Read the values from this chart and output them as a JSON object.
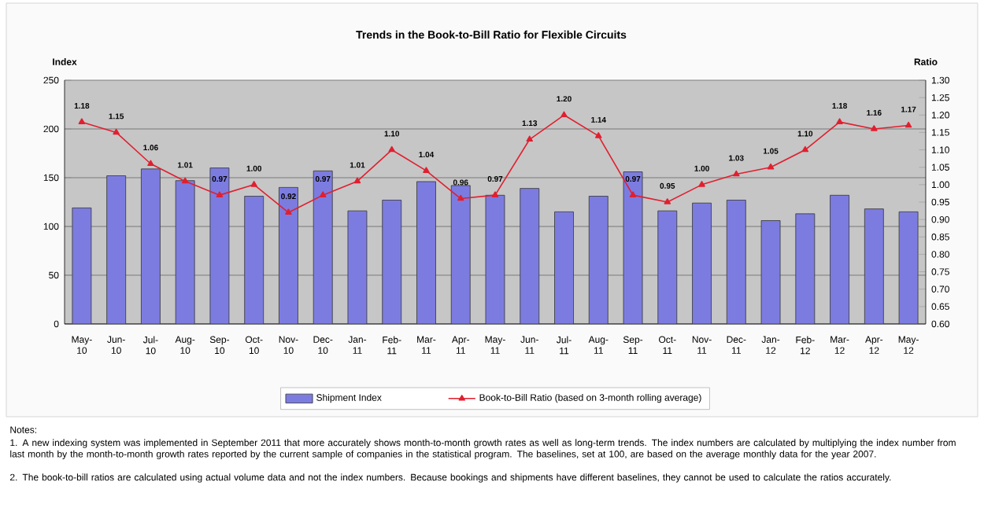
{
  "chart_data": {
    "type": "bar",
    "title": "Trends in the Book-to-Bill Ratio for Flexible Circuits",
    "ylabel": "Index",
    "y2label": "Ratio",
    "categories": [
      "May-10",
      "Jun-10",
      "Jul-10",
      "Aug-10",
      "Sep-10",
      "Oct-10",
      "Nov-10",
      "Dec-10",
      "Jan-11",
      "Feb-11",
      "Mar-11",
      "Apr-11",
      "May-11",
      "Jun-11",
      "Jul-11",
      "Aug-11",
      "Sep-11",
      "Oct-11",
      "Nov-11",
      "Dec-11",
      "Jan-12",
      "Feb-12",
      "Mar-12",
      "Apr-12",
      "May-12"
    ],
    "series": [
      {
        "name": "Shipment Index",
        "color": "#7c7ce0",
        "values": [
          119,
          152,
          159,
          147,
          160,
          131,
          140,
          157,
          116,
          127,
          146,
          142,
          132,
          139,
          115,
          131,
          156,
          116,
          124,
          127,
          106,
          113,
          132,
          118,
          115
        ]
      },
      {
        "name": "Book-to-Bill Ratio (based on 3-month rolling average)",
        "type": "line",
        "axis": "y2",
        "color": "#e02030",
        "marker": "triangle",
        "values": [
          1.18,
          1.15,
          1.06,
          1.01,
          0.97,
          1.0,
          0.92,
          0.97,
          1.01,
          1.1,
          1.04,
          0.96,
          0.97,
          1.13,
          1.2,
          1.14,
          0.97,
          0.95,
          1.0,
          1.03,
          1.05,
          1.1,
          1.18,
          1.16,
          1.17
        ],
        "value_labels": [
          "1.18",
          "1.15",
          "1.06",
          "1.01",
          "0.97",
          "1.00",
          "0.92",
          "0.97",
          "1.01",
          "1.10",
          "1.04",
          "0.96",
          "0.97",
          "1.13",
          "1.20",
          "1.14",
          "0.97",
          "0.95",
          "1.00",
          "1.03",
          "1.05",
          "1.10",
          "1.18",
          "1.16",
          "1.17"
        ]
      }
    ],
    "ylim": [
      0,
      250
    ],
    "yticks": [
      0,
      50,
      100,
      150,
      200,
      250
    ],
    "y2lim": [
      0.6,
      1.3
    ],
    "y2ticks": [
      {
        "value": 0.6,
        "label": "0.60"
      },
      {
        "value": 0.65,
        "label": "0.65"
      },
      {
        "value": 0.7,
        "label": "0.70"
      },
      {
        "value": 0.75,
        "label": "0.75"
      },
      {
        "value": 0.8,
        "label": "0.80"
      },
      {
        "value": 0.85,
        "label": "0.85"
      },
      {
        "value": 0.9,
        "label": "0.90"
      },
      {
        "value": 0.95,
        "label": "0.95"
      },
      {
        "value": 1.0,
        "label": "1.00"
      },
      {
        "value": 1.05,
        "label": "1.05"
      },
      {
        "value": 1.1,
        "label": "1.10"
      },
      {
        "value": 1.15,
        "label": "1.15"
      },
      {
        "value": 1.2,
        "label": "1.20"
      },
      {
        "value": 1.25,
        "label": "1.25"
      },
      {
        "value": 1.3,
        "label": "1.30"
      }
    ],
    "grid": "y",
    "legend": "bottom",
    "annotations": [
      "Notes:",
      "1.  A new indexing system was implemented in September 2011 that more accurately shows month-to-month growth rates as well as long-term trends. The index numbers are calculated by multiplying the index number from last month by the month-to-month growth rates reported by the current sample of companies in the statistical program.  The baselines, set at 100, are based on the average monthly data for the year 2007.",
      "2.  The book-to-bill ratios are calculated using actual volume data and not the index numbers.  Because bookings and shipments have different baselines, they cannot be used to calculate the ratios accurately."
    ]
  }
}
